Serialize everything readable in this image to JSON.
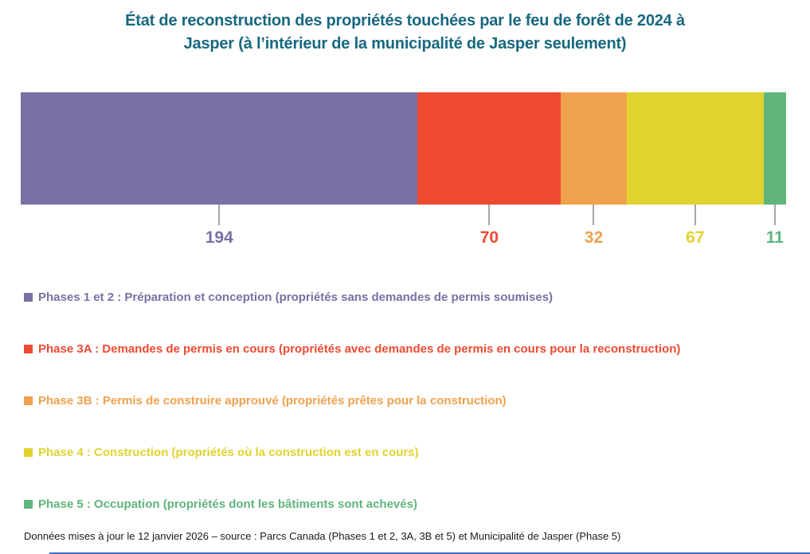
{
  "colors": {
    "title": "#17687F",
    "tick": "#A6A6A6",
    "footnote": "#1A1A1A",
    "bottom_line": "#4472C4",
    "background": "#FFFFFF"
  },
  "chart_data": {
    "type": "bar",
    "variant": "horizontal-stacked-single-bar",
    "title": "État de reconstruction des propriétés touchées par le feu de forêt de 2024 à Jasper (à l’intérieur de la municipalité de Jasper seulement)",
    "title_lines": [
      "État de reconstruction des propriétés touchées par le feu de forêt de 2024 à",
      "Jasper (à l’intérieur de la municipalité de Jasper seulement)"
    ],
    "total": 374,
    "series": [
      {
        "name": "Phases 1 et 2 : Préparation et conception (propriétés sans demandes de permis soumises)",
        "value": 194,
        "color": "#7A70A4"
      },
      {
        "name": "Phase 3A : Demandes de permis en cours (propriétés avec demandes de permis en cours pour la reconstruction)",
        "value": 70,
        "color": "#EE4A32"
      },
      {
        "name": "Phase 3B : Permis de construire approuvé (propriétés prêtes pour la construction)",
        "value": 32,
        "color": "#F0A14D"
      },
      {
        "name": "Phase 4 : Construction (propriétés où la construction est en cours)",
        "value": 67,
        "color": "#E1D32F"
      },
      {
        "name": "Phase 5 : Occupation (propriétés dont les bâtiments sont achevés)",
        "value": 11,
        "color": "#5FB57B"
      }
    ],
    "value_labels_position": "below-segment-center",
    "legend_position": "bottom-left-vertical",
    "axes": "none",
    "grid": false,
    "footnote": "Données mises à jour le 12 janvier 2026 – source : Parcs Canada (Phases 1 et 2, 3A, 3B et 5) et Municipalité de Jasper (Phase 5)"
  }
}
